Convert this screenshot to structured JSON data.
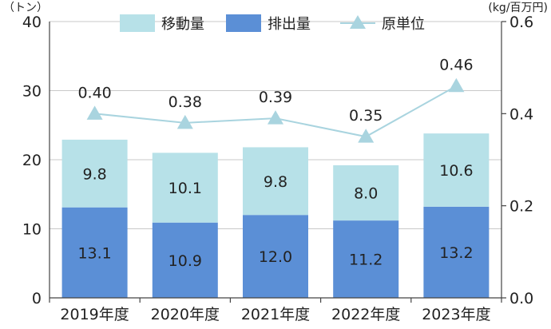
{
  "chart_data": {
    "type": "bar",
    "stacked": true,
    "categories": [
      "2019年度",
      "2020年度",
      "2021年度",
      "2022年度",
      "2023年度"
    ],
    "series": [
      {
        "name": "排出量",
        "kind": "bar",
        "axis": "left",
        "color": "#5b8fd6",
        "values": [
          13.1,
          10.9,
          12.0,
          11.2,
          13.2
        ]
      },
      {
        "name": "移動量",
        "kind": "bar",
        "axis": "left",
        "color": "#b7e1e8",
        "values": [
          9.8,
          10.1,
          9.8,
          8.0,
          10.6
        ]
      },
      {
        "name": "原単位",
        "kind": "line",
        "axis": "right",
        "color": "#a9d4df",
        "marker": "triangle",
        "values": [
          0.4,
          0.38,
          0.39,
          0.35,
          0.46
        ]
      }
    ],
    "value_labels": {
      "排出量": [
        "13.1",
        "10.9",
        "12.0",
        "11.2",
        "13.2"
      ],
      "移動量": [
        "9.8",
        "10.1",
        "9.8",
        "8.0",
        "10.6"
      ],
      "原単位": [
        "0.40",
        "0.38",
        "0.39",
        "0.35",
        "0.46"
      ]
    },
    "left_axis": {
      "unit": "（トン）",
      "ylim": [
        0,
        40
      ],
      "ticks": [
        "0",
        "10",
        "20",
        "30",
        "40"
      ]
    },
    "right_axis": {
      "unit": "(kg/百万円)",
      "ylim": [
        0,
        0.6
      ],
      "ticks": [
        "0.0",
        "0.2",
        "0.4",
        "0.6"
      ]
    },
    "grid": true,
    "legend": {
      "placement": "top",
      "items": [
        "移動量",
        "排出量",
        "原単位"
      ]
    }
  }
}
